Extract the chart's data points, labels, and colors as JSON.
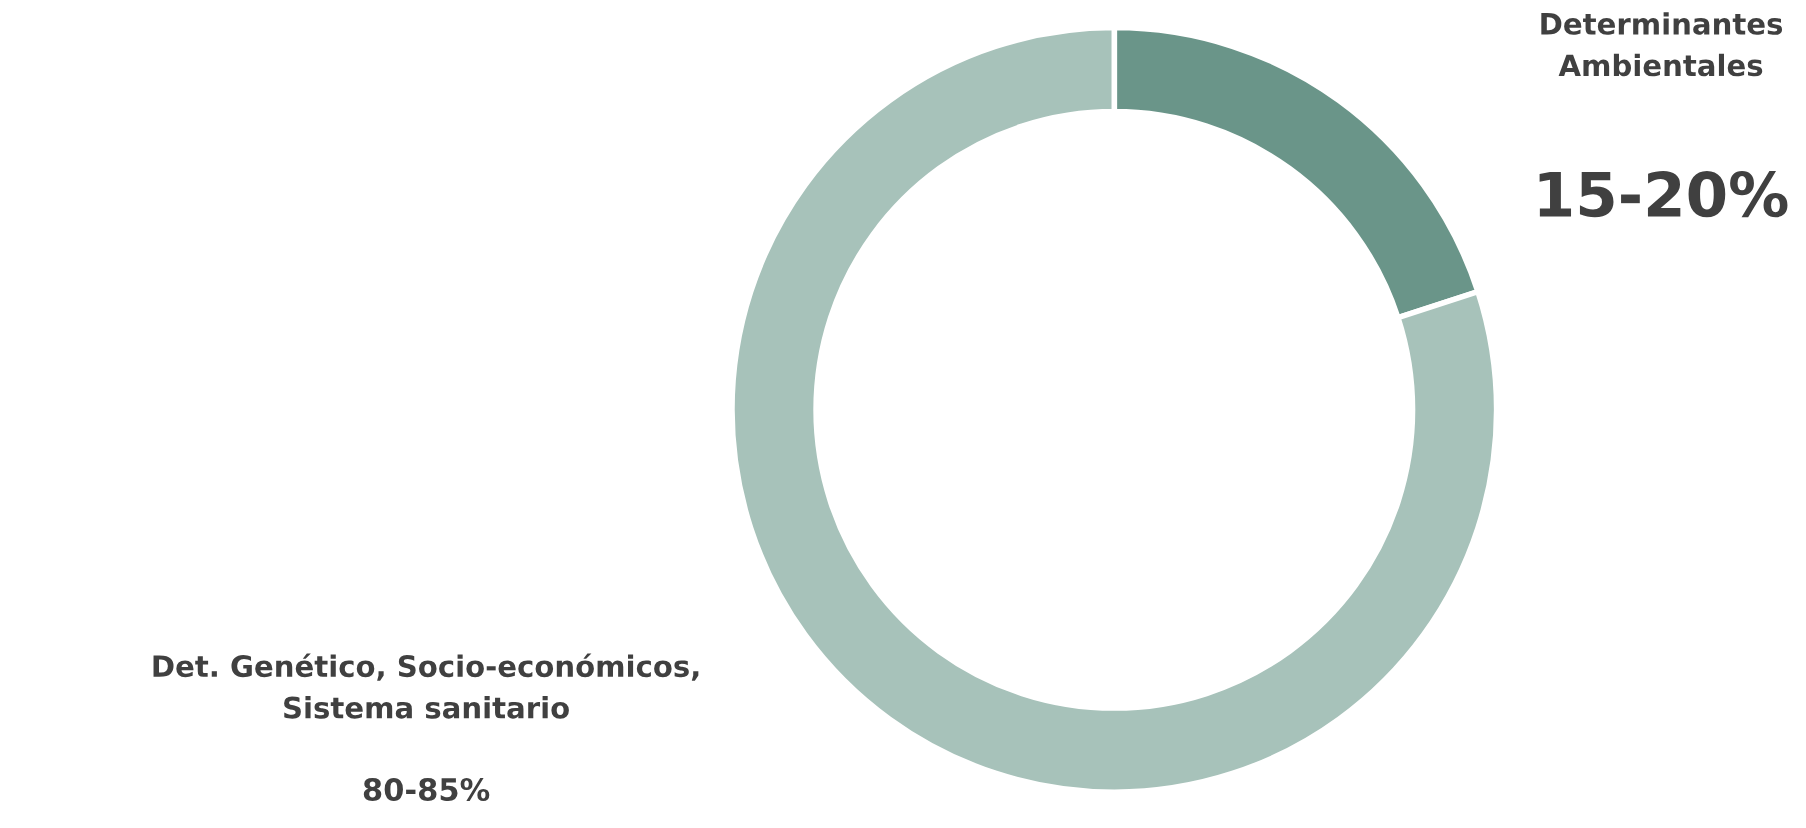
{
  "chart_data": {
    "type": "donut",
    "categories": [
      "Determinantes\nAmbientales",
      "Det. Genético, Socio-económicos,\nSistema sanitario"
    ],
    "values": [
      20,
      80
    ],
    "colors": [
      "#6a9589",
      "#a7c2ba"
    ],
    "annotations": [
      "15-20%",
      "80-85%"
    ],
    "legend": false
  }
}
